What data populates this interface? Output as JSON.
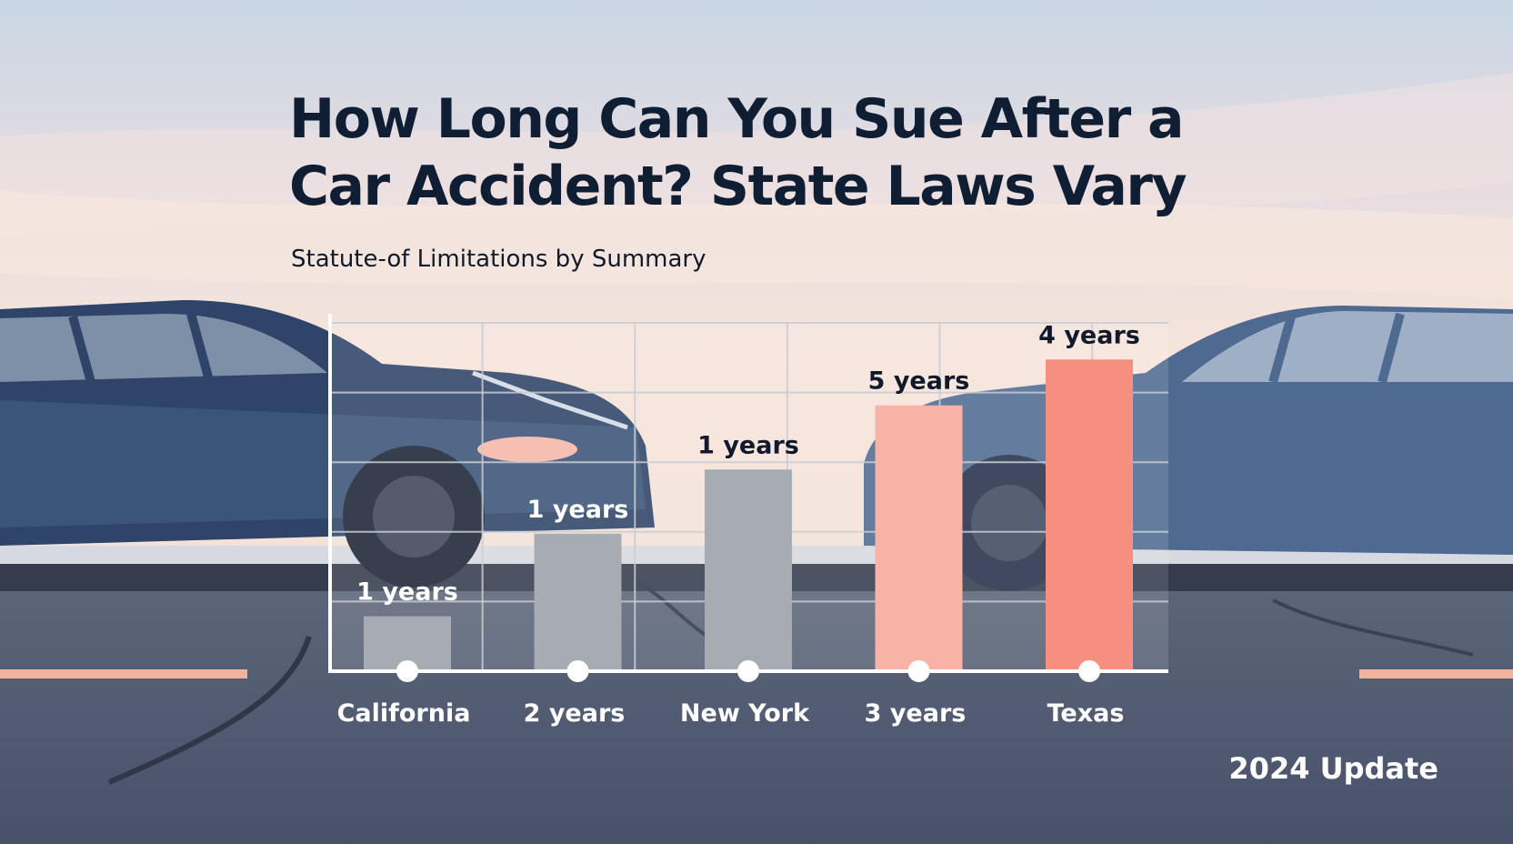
{
  "title": "How Long Can You Sue After a Car Accident? State Laws Vary",
  "subtitle": "Statute-of Limitations by Summary",
  "footer": "2024 Update",
  "colors": {
    "grey_bar": "#a7abb2",
    "light_salmon_bar": "#f8b3a6",
    "salmon_bar": "#f78f80",
    "title": "#0f1e33"
  },
  "chart_data": {
    "type": "bar",
    "categories": [
      "California",
      "2 years",
      "New York",
      "3 years",
      "Texas"
    ],
    "values": [
      0.6,
      1.5,
      2.2,
      2.9,
      3.4
    ],
    "data_labels": [
      "1 years",
      "1 years",
      "1 years",
      "5 years",
      "4 years"
    ],
    "bar_colors": [
      "#a7abb2",
      "#a7abb2",
      "#a7abb2",
      "#f8b3a6",
      "#f78f80"
    ],
    "label_colors": [
      "#ffffff",
      "#ffffff",
      "#111a2a",
      "#111a2a",
      "#111a2a"
    ],
    "title": "How Long Can You Sue After a Car Accident? State Laws Vary",
    "subtitle": "Statute-of Limitations by Summary",
    "xlabel": "",
    "ylabel": "",
    "ylim": [
      0,
      3.8
    ],
    "grid": true,
    "legend": "none"
  }
}
